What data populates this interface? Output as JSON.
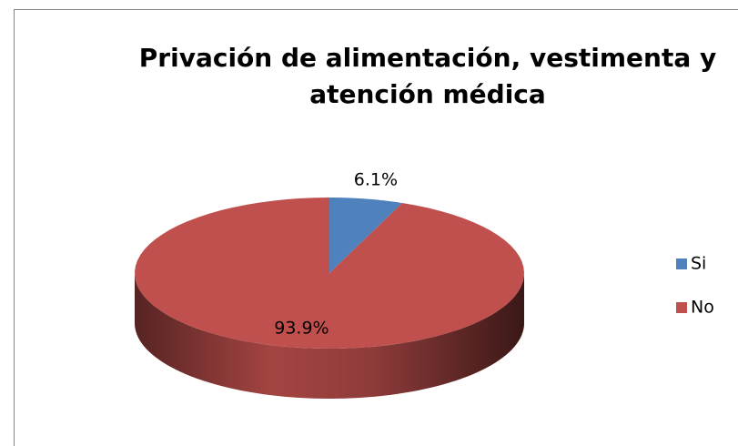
{
  "chart_data": {
    "type": "pie",
    "title": "Privación de alimentación, vestimenta y atención médica",
    "categories": [
      "Si",
      "No"
    ],
    "values": [
      6.1,
      93.9
    ],
    "value_labels": [
      "6.1%",
      "93.9%"
    ],
    "colors": [
      "#4f81bd",
      "#c0504d"
    ],
    "legend": "right"
  }
}
